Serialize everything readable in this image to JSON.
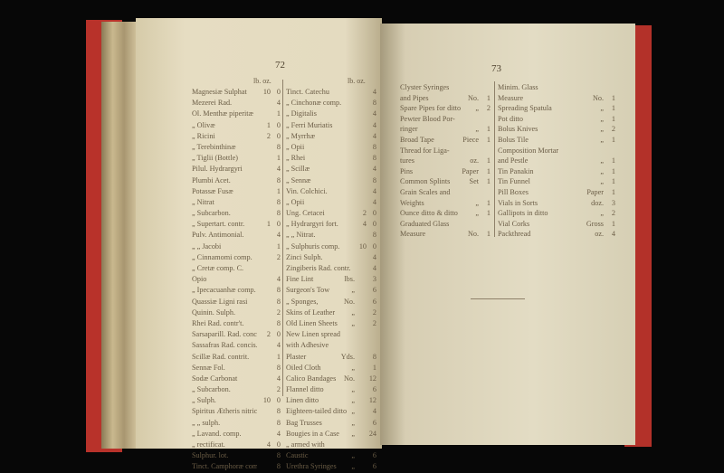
{
  "left_page": {
    "page_number": "72",
    "header_left": "lb. oz.",
    "header_right": "lb. oz.",
    "col1": [
      {
        "name": "Magnesiæ Sulphat",
        "unit": "",
        "a": "10",
        "b": "0"
      },
      {
        "name": "Mezerei Rad.",
        "unit": "",
        "a": "",
        "b": "4"
      },
      {
        "name": "Ol. Menthæ piperitæ",
        "unit": "",
        "a": "",
        "b": "1"
      },
      {
        "name": "„ Olivæ",
        "unit": "",
        "a": "1",
        "b": "0"
      },
      {
        "name": "„ Ricini",
        "unit": "",
        "a": "2",
        "b": "0"
      },
      {
        "name": "„ Terebinthinæ",
        "unit": "",
        "a": "",
        "b": "8"
      },
      {
        "name": "„ Tiglii (Bottle)",
        "unit": "",
        "a": "",
        "b": "1"
      },
      {
        "name": "Pilul. Hydrargyri",
        "unit": "",
        "a": "",
        "b": "4"
      },
      {
        "name": "Plumbi Acet.",
        "unit": "",
        "a": "",
        "b": "8"
      },
      {
        "name": "Potassæ Fusæ",
        "unit": "",
        "a": "",
        "b": "1"
      },
      {
        "name": "„ Nitrat",
        "unit": "",
        "a": "",
        "b": "8"
      },
      {
        "name": "„ Subcarbon.",
        "unit": "",
        "a": "",
        "b": "8"
      },
      {
        "name": "„ Supertart. contr.",
        "unit": "",
        "a": "1",
        "b": "0"
      },
      {
        "name": "Pulv. Antimonial.",
        "unit": "",
        "a": "",
        "b": "4"
      },
      {
        "name": "„ „ Jacobi",
        "unit": "",
        "a": "",
        "b": "1"
      },
      {
        "name": "„ Cinnamomi comp.",
        "unit": "",
        "a": "",
        "b": "2"
      },
      {
        "name": "„ Cretæ comp. C.",
        "unit": "",
        "a": "",
        "b": ""
      },
      {
        "name": "Opio",
        "unit": "",
        "a": "",
        "b": "4"
      },
      {
        "name": "„ Ipecacuanhæ comp.",
        "unit": "",
        "a": "",
        "b": "8"
      },
      {
        "name": "Quassiæ Ligni rasi",
        "unit": "",
        "a": "",
        "b": "8"
      },
      {
        "name": "Quinin. Sulph.",
        "unit": "",
        "a": "",
        "b": "2"
      },
      {
        "name": "Rhei Rad. contr't.",
        "unit": "",
        "a": "",
        "b": "8"
      },
      {
        "name": "Sarsaparill. Rad. concis.",
        "unit": "",
        "a": "2",
        "b": "0"
      },
      {
        "name": "Sassafras Rad. concis.",
        "unit": "",
        "a": "",
        "b": "4"
      },
      {
        "name": "Scillæ Rad. contrit.",
        "unit": "",
        "a": "",
        "b": "1"
      },
      {
        "name": "Sennæ Fol.",
        "unit": "",
        "a": "",
        "b": "8"
      },
      {
        "name": "Sodæ Carbonat",
        "unit": "",
        "a": "",
        "b": "4"
      },
      {
        "name": "„ Subcarbon.",
        "unit": "",
        "a": "",
        "b": "2"
      },
      {
        "name": "„ Sulph.",
        "unit": "",
        "a": "10",
        "b": "0"
      },
      {
        "name": "Spiritus Ætheris nitric.",
        "unit": "",
        "a": "",
        "b": "8"
      },
      {
        "name": "„ „ sulph.",
        "unit": "",
        "a": "",
        "b": "8"
      },
      {
        "name": "„ Lavand. comp.",
        "unit": "",
        "a": "",
        "b": "4"
      },
      {
        "name": "„ rectificat.",
        "unit": "",
        "a": "4",
        "b": "0"
      },
      {
        "name": "Sulphur. lot.",
        "unit": "",
        "a": "",
        "b": "8"
      },
      {
        "name": "Tinct. Camphoræ comp.",
        "unit": "",
        "a": "",
        "b": "8"
      }
    ],
    "col2": [
      {
        "name": "Tinct. Catechu",
        "unit": "",
        "a": "",
        "b": "4"
      },
      {
        "name": "„ Cinchonæ comp.",
        "unit": "",
        "a": "",
        "b": "8"
      },
      {
        "name": "„ Digitalis",
        "unit": "",
        "a": "",
        "b": "4"
      },
      {
        "name": "„ Ferri Muriatis",
        "unit": "",
        "a": "",
        "b": "4"
      },
      {
        "name": "„ Myrrhæ",
        "unit": "",
        "a": "",
        "b": "4"
      },
      {
        "name": "„ Opii",
        "unit": "",
        "a": "",
        "b": "8"
      },
      {
        "name": "„ Rhei",
        "unit": "",
        "a": "",
        "b": "8"
      },
      {
        "name": "„ Scillæ",
        "unit": "",
        "a": "",
        "b": "4"
      },
      {
        "name": "„ Sennæ",
        "unit": "",
        "a": "",
        "b": "8"
      },
      {
        "name": "Vin. Colchici.",
        "unit": "",
        "a": "",
        "b": "4"
      },
      {
        "name": "„ Opii",
        "unit": "",
        "a": "",
        "b": "4"
      },
      {
        "name": "Ung. Cetacei",
        "unit": "",
        "a": "2",
        "b": "0"
      },
      {
        "name": "„ Hydrargyri fort.",
        "unit": "",
        "a": "4",
        "b": "0"
      },
      {
        "name": "„ „ Nitrat.",
        "unit": "",
        "a": "",
        "b": "8"
      },
      {
        "name": "„ Sulphuris comp.",
        "unit": "",
        "a": "10",
        "b": "0"
      },
      {
        "name": "Zinci Sulph.",
        "unit": "",
        "a": "",
        "b": "4"
      },
      {
        "name": "Zingiberis Rad. contr.",
        "unit": "",
        "a": "",
        "b": "4"
      },
      {
        "name": "Fine Lint",
        "unit": "lbs.",
        "a": "",
        "b": "3"
      },
      {
        "name": "Surgeon's Tow",
        "unit": "„",
        "a": "",
        "b": "6"
      },
      {
        "name": "„ Sponges,",
        "unit": "No.",
        "a": "",
        "b": "6"
      },
      {
        "name": "Skins of Leather",
        "unit": "„",
        "a": "",
        "b": "2"
      },
      {
        "name": "Old Linen Sheets",
        "unit": "„",
        "a": "",
        "b": "2"
      },
      {
        "name": "New Linen spread",
        "unit": "",
        "a": "",
        "b": ""
      },
      {
        "name": "with Adhesive",
        "unit": "",
        "a": "",
        "b": ""
      },
      {
        "name": "Plaster",
        "unit": "Yds.",
        "a": "",
        "b": "8"
      },
      {
        "name": "Oiled Cloth",
        "unit": "„",
        "a": "",
        "b": "1"
      },
      {
        "name": "Calico Bandages",
        "unit": "No.",
        "a": "",
        "b": "12"
      },
      {
        "name": "Flannel ditto",
        "unit": "„",
        "a": "",
        "b": "6"
      },
      {
        "name": "Linen ditto",
        "unit": "„",
        "a": "",
        "b": "12"
      },
      {
        "name": "Eighteen-tailed ditto",
        "unit": "„",
        "a": "",
        "b": "4"
      },
      {
        "name": "Bag Trusses",
        "unit": "„",
        "a": "",
        "b": "6"
      },
      {
        "name": "Bougies in a Case",
        "unit": "„",
        "a": "",
        "b": "24"
      },
      {
        "name": "„ armed with",
        "unit": "",
        "a": "",
        "b": ""
      },
      {
        "name": "Caustic",
        "unit": "„",
        "a": "",
        "b": "6"
      },
      {
        "name": "Urethra Syringes",
        "unit": "„",
        "a": "",
        "b": "6"
      }
    ]
  },
  "right_page": {
    "page_number": "73",
    "col1": [
      {
        "name": "Clyster Syringes",
        "unit": "",
        "b": ""
      },
      {
        "name": "and Pipes",
        "unit": "No.",
        "b": "1"
      },
      {
        "name": "Spare Pipes for ditto",
        "unit": "„",
        "b": "2"
      },
      {
        "name": "Pewter Blood Por-",
        "unit": "",
        "b": ""
      },
      {
        "name": "ringer",
        "unit": "„",
        "b": "1"
      },
      {
        "name": "Broad Tape",
        "unit": "Piece",
        "b": "1"
      },
      {
        "name": "Thread for Liga-",
        "unit": "",
        "b": ""
      },
      {
        "name": "tures",
        "unit": "oz.",
        "b": "1"
      },
      {
        "name": "Pins",
        "unit": "Paper",
        "b": "1"
      },
      {
        "name": "Common Splints",
        "unit": "Set",
        "b": "1"
      },
      {
        "name": "Grain Scales and",
        "unit": "",
        "b": ""
      },
      {
        "name": "Weights",
        "unit": "„",
        "b": "1"
      },
      {
        "name": "Ounce ditto & ditto",
        "unit": "„",
        "b": "1"
      },
      {
        "name": "Graduated Glass",
        "unit": "",
        "b": ""
      },
      {
        "name": "Measure",
        "unit": "No.",
        "b": "1"
      }
    ],
    "col2": [
      {
        "name": "Minim. Glass",
        "unit": "",
        "b": ""
      },
      {
        "name": "Measure",
        "unit": "No.",
        "b": "1"
      },
      {
        "name": "Spreading Spatula",
        "unit": "„",
        "b": "1"
      },
      {
        "name": "Pot ditto",
        "unit": "„",
        "b": "1"
      },
      {
        "name": "Bolus Knives",
        "unit": "„",
        "b": "2"
      },
      {
        "name": "Bolus Tile",
        "unit": "„",
        "b": "1"
      },
      {
        "name": "Composition Mortar",
        "unit": "",
        "b": ""
      },
      {
        "name": "and Pestle",
        "unit": "„",
        "b": "1"
      },
      {
        "name": "Tin Panakin",
        "unit": "„",
        "b": "1"
      },
      {
        "name": "Tin Funnel",
        "unit": "„",
        "b": "1"
      },
      {
        "name": "Pill Boxes",
        "unit": "Paper",
        "b": "1"
      },
      {
        "name": "Vials in Sorts",
        "unit": "doz.",
        "b": "3"
      },
      {
        "name": "Gallipots in ditto",
        "unit": "„",
        "b": "2"
      },
      {
        "name": "Vial Corks",
        "unit": "Gross",
        "b": "1"
      },
      {
        "name": "Packthread",
        "unit": "oz.",
        "b": "4"
      }
    ]
  }
}
